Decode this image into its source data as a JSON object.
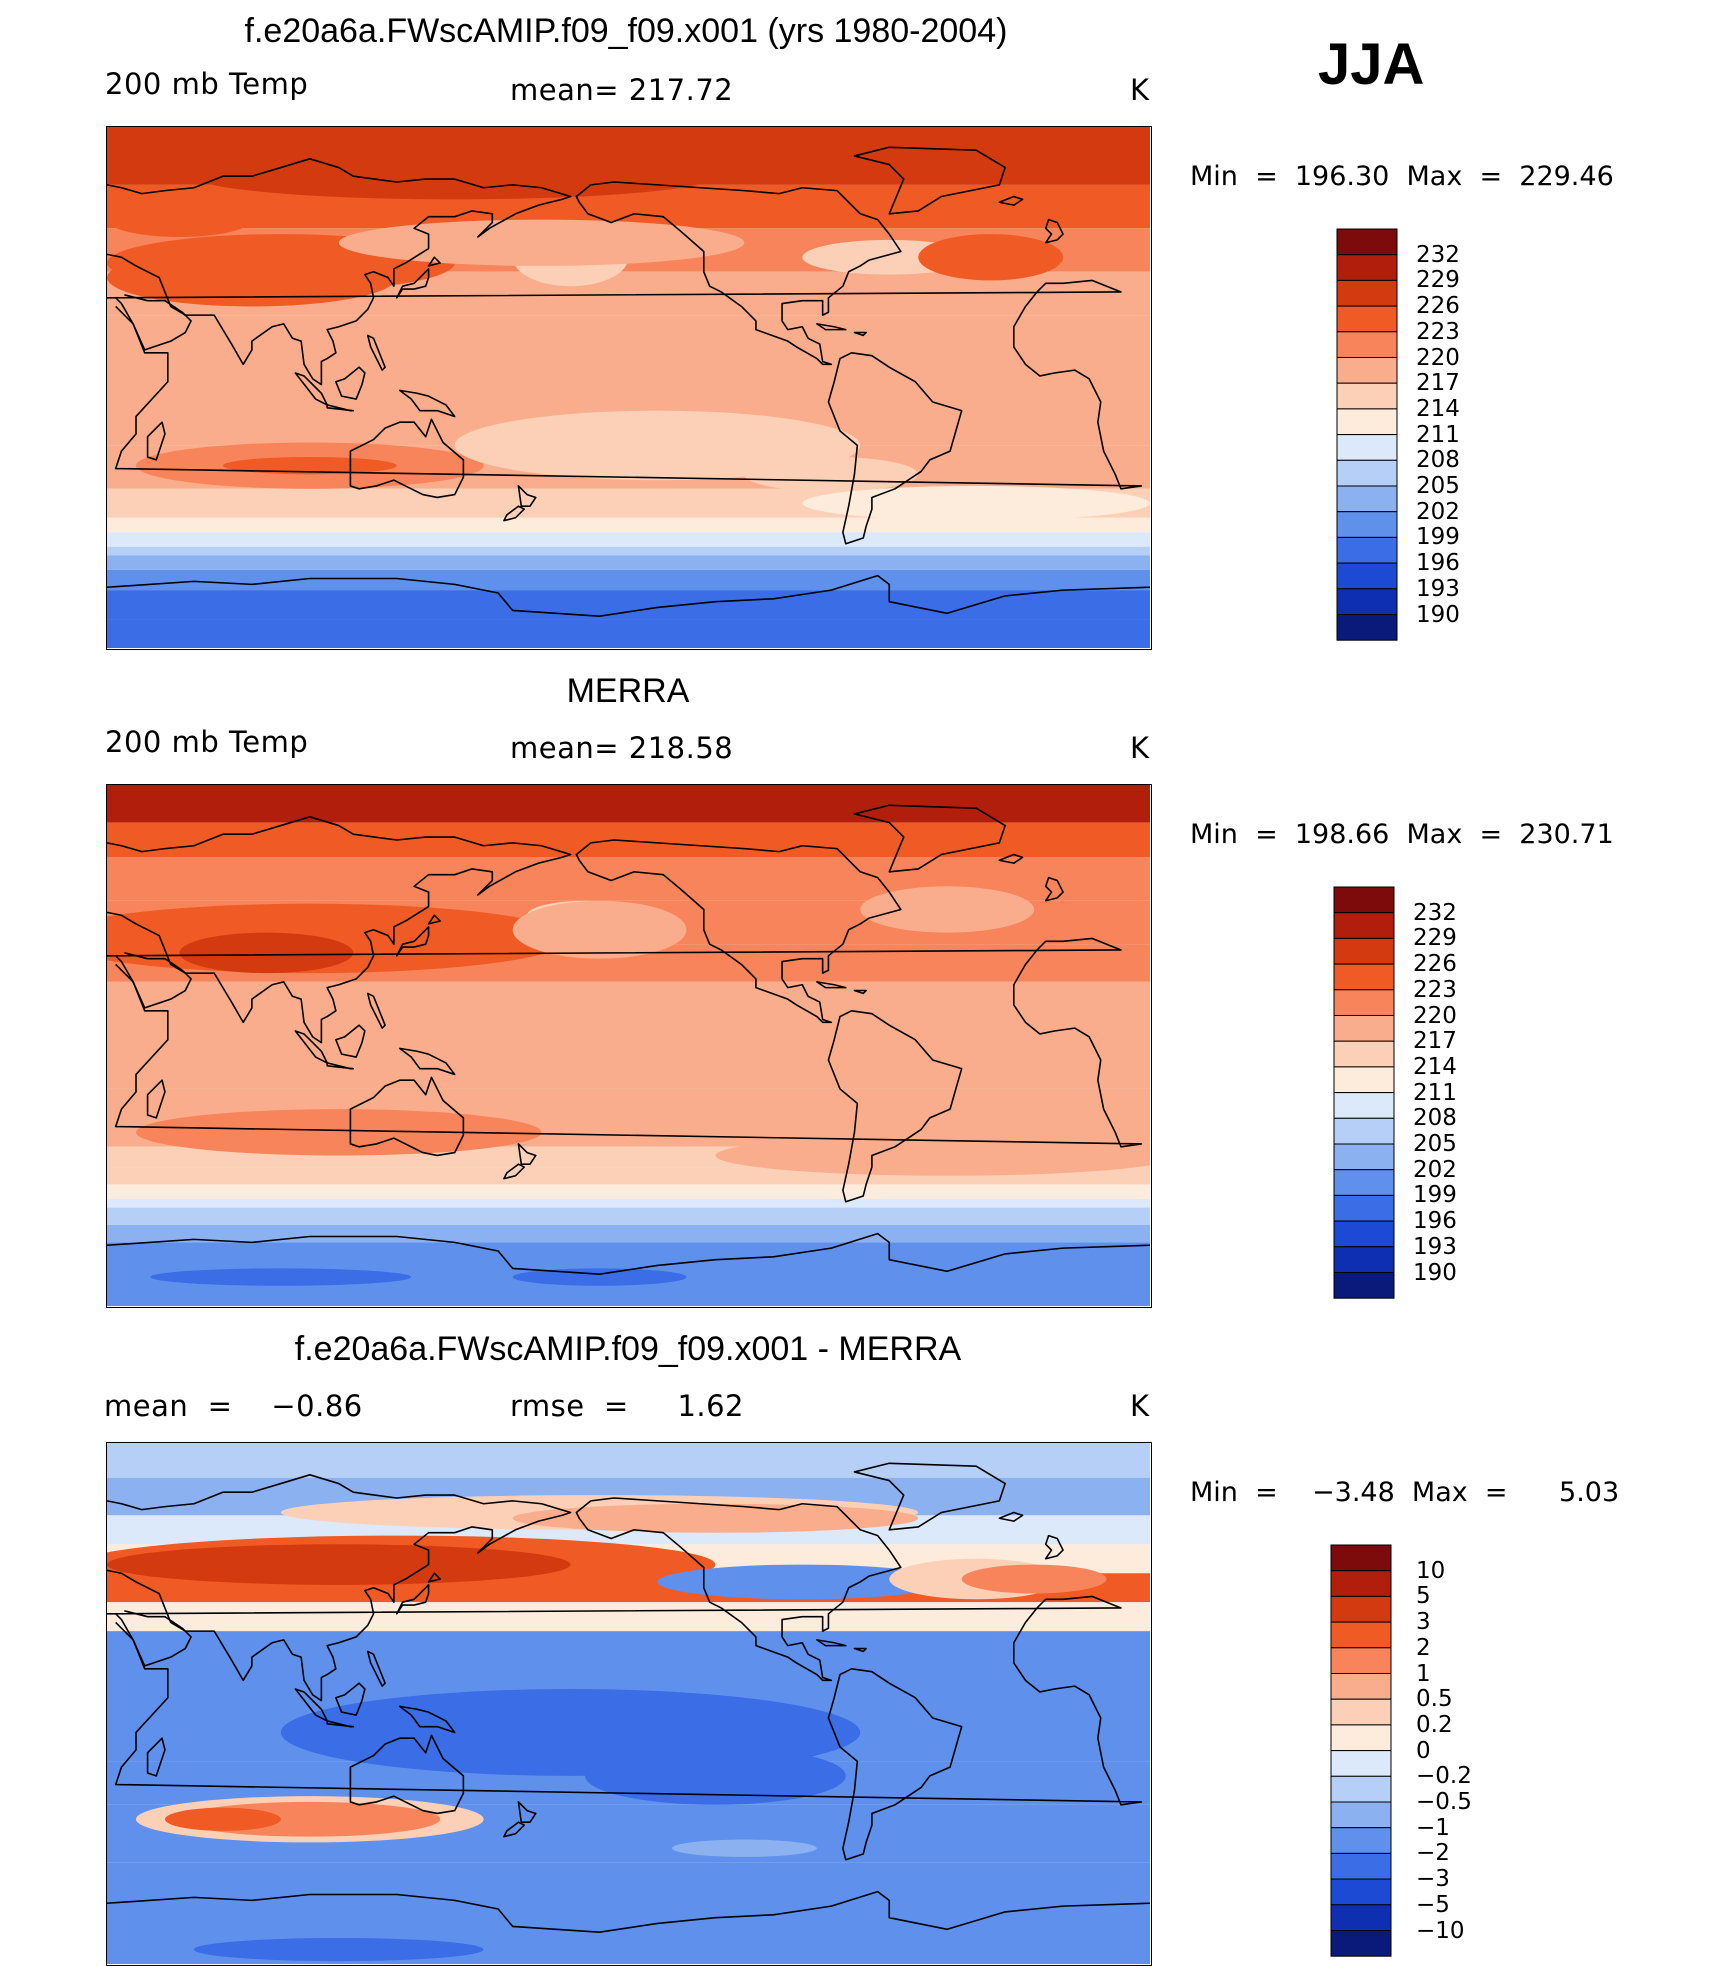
{
  "season": "JJA",
  "panels": [
    {
      "title": "f.e20a6a.FWscAMIP.f09_f09.x001 (yrs 1980-2004)",
      "left": "200 mb Temp",
      "center": "mean= 217.72",
      "units": "K",
      "minmax": "Min  =  196.30  Max  =  229.46",
      "levels": [
        "232",
        "229",
        "226",
        "223",
        "220",
        "217",
        "214",
        "211",
        "208",
        "205",
        "202",
        "199",
        "196",
        "193",
        "190"
      ]
    },
    {
      "title": "MERRA",
      "left": "200 mb Temp",
      "center": "mean= 218.58",
      "units": "K",
      "minmax": "Min  =  198.66  Max  =  230.71",
      "levels": [
        "232",
        "229",
        "226",
        "223",
        "220",
        "217",
        "214",
        "211",
        "208",
        "205",
        "202",
        "199",
        "196",
        "193",
        "190"
      ]
    },
    {
      "title": "f.e20a6a.FWscAMIP.f09_f09.x001 - MERRA",
      "left": "mean  =    −0.86",
      "center": "rmse  =     1.62",
      "units": "K",
      "minmax": "Min  =    −3.48  Max  =      5.03",
      "levels": [
        "10",
        "5",
        "3",
        "2",
        "1",
        "0.5",
        "0.2",
        "0",
        "−0.2",
        "−0.5",
        "−1",
        "−2",
        "−3",
        "−5",
        "−10"
      ]
    }
  ],
  "colors": {
    "palette": [
      "#7d0b0b",
      "#b11f0c",
      "#d33a0f",
      "#f05a24",
      "#f7845a",
      "#f9ad8c",
      "#fbd0b7",
      "#fdebdc",
      "#dbe9fb",
      "#b6cff6",
      "#8cb1f1",
      "#5f90ec",
      "#3a6de6",
      "#1d4ad4",
      "#0f2fb2",
      "#091a7a"
    ]
  },
  "chart_data": [
    {
      "type": "heatmap",
      "title": "f.e20a6a.FWscAMIP.f09_f09.x001 (yrs 1980-2004)",
      "field": "200 mb Temp",
      "units": "K",
      "mean": 217.72,
      "min": 196.3,
      "max": 229.46,
      "contour_levels": [
        190,
        193,
        196,
        199,
        202,
        205,
        208,
        211,
        214,
        217,
        220,
        223,
        226,
        229,
        232
      ]
    },
    {
      "type": "heatmap",
      "title": "MERRA",
      "field": "200 mb Temp",
      "units": "K",
      "mean": 218.58,
      "min": 198.66,
      "max": 230.71,
      "contour_levels": [
        190,
        193,
        196,
        199,
        202,
        205,
        208,
        211,
        214,
        217,
        220,
        223,
        226,
        229,
        232
      ]
    },
    {
      "type": "heatmap",
      "title": "f.e20a6a.FWscAMIP.f09_f09.x001 - MERRA",
      "units": "K",
      "mean": -0.86,
      "rmse": 1.62,
      "min": -3.48,
      "max": 5.03,
      "contour_levels": [
        -10,
        -5,
        -3,
        -2,
        -1,
        -0.5,
        -0.2,
        0,
        0.2,
        0.5,
        1,
        2,
        3,
        5,
        10
      ]
    }
  ]
}
